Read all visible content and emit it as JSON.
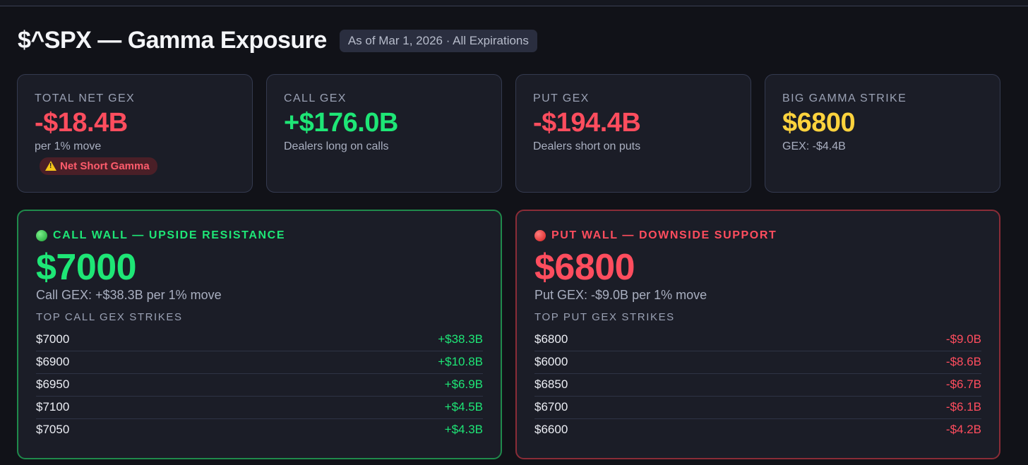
{
  "header": {
    "title": "$^SPX — Gamma Exposure",
    "as_of": "As of Mar 1, 2026 · All Expirations"
  },
  "stats": [
    {
      "label": "TOTAL NET GEX",
      "value": "-$18.4B",
      "sub": "per 1% move",
      "badge": "Net Short Gamma",
      "badge_icon": "warning-icon"
    },
    {
      "label": "CALL GEX",
      "value": "+$176.0B",
      "sub": "Dealers long on calls"
    },
    {
      "label": "PUT GEX",
      "value": "-$194.4B",
      "sub": "Dealers short on puts"
    },
    {
      "label": "BIG GAMMA STRIKE",
      "value": "$6800",
      "sub": "GEX: -$4.4B"
    }
  ],
  "call_wall": {
    "heading": "CALL WALL — UPSIDE RESISTANCE",
    "value": "$7000",
    "sub": "Call GEX: +$38.3B per 1% move",
    "list_label": "TOP CALL GEX STRIKES",
    "rows": [
      {
        "strike": "$7000",
        "gex": "+$38.3B"
      },
      {
        "strike": "$6900",
        "gex": "+$10.8B"
      },
      {
        "strike": "$6950",
        "gex": "+$6.9B"
      },
      {
        "strike": "$7100",
        "gex": "+$4.5B"
      },
      {
        "strike": "$7050",
        "gex": "+$4.3B"
      }
    ]
  },
  "put_wall": {
    "heading": "PUT WALL — DOWNSIDE SUPPORT",
    "value": "$6800",
    "sub": "Put GEX: -$9.0B per 1% move",
    "list_label": "TOP PUT GEX STRIKES",
    "rows": [
      {
        "strike": "$6800",
        "gex": "-$9.0B"
      },
      {
        "strike": "$6000",
        "gex": "-$8.6B"
      },
      {
        "strike": "$6850",
        "gex": "-$6.7B"
      },
      {
        "strike": "$6700",
        "gex": "-$6.1B"
      },
      {
        "strike": "$6600",
        "gex": "-$4.2B"
      }
    ]
  },
  "colors": {
    "positive": "#1ee676",
    "negative": "#ff4d5e",
    "highlight": "#ffd33d",
    "background": "#111218",
    "card": "#1b1d27"
  }
}
